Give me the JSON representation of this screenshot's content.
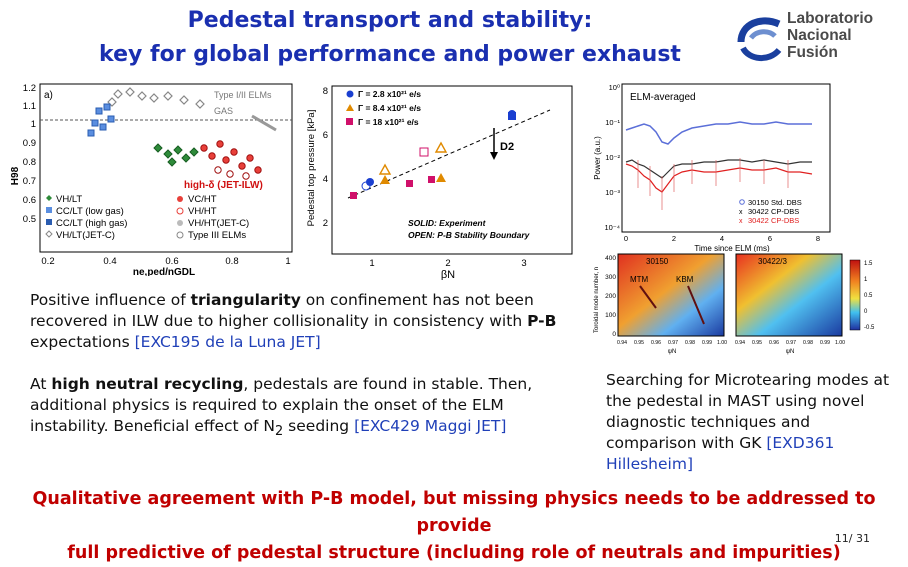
{
  "title": {
    "line1": "Pedestal transport and stability:",
    "line2": "key for global performance and power exhaust"
  },
  "logo": {
    "line1": "Laboratorio",
    "line2": "Nacional",
    "line3": "Fusión"
  },
  "fig1": {
    "panel": "a)",
    "ylabel": "H98",
    "xlabel": "ne,ped/nGDL",
    "yticks": [
      "1.2",
      "1.1",
      "1",
      "0.9",
      "0.8",
      "0.7",
      "0.6",
      "0.5"
    ],
    "xticks": [
      "0.2",
      "0.4",
      "0.6",
      "0.8",
      "1"
    ],
    "ann_type": "Type I/II ELMs",
    "ann_gas": "GAS",
    "ann_highdelta": "high-δ (JET-ILW)",
    "legend_left": [
      "VH/LT",
      "CC/LT (low gas)",
      "CC/LT (high gas)",
      "VH/LT(JET-C)"
    ],
    "legend_right": [
      "VC/HT",
      "VH/HT",
      "VH/HT(JET-C)",
      "Type III ELMs"
    ]
  },
  "fig2": {
    "ylabel": "Pedestal top pressure [kPa]",
    "xlabel": "βN",
    "yticks": [
      "8",
      "6",
      "4",
      "2"
    ],
    "xticks": [
      "1",
      "2",
      "3"
    ],
    "legend": [
      "Γ = 2.8 x10²¹ e/s",
      "Γ = 8.4 x10²¹ e/s",
      "Γ = 18 x10²¹ e/s"
    ],
    "d2": "D2",
    "note1": "SOLID: Experiment",
    "note2": "OPEN: P-B Stability Boundary"
  },
  "fig3": {
    "title": "ELM-averaged",
    "ylabel": "Power (a.u.)",
    "xlabel": "Time since ELM (ms)",
    "yticks": [
      "10⁰",
      "10⁻¹",
      "10⁻²",
      "10⁻³",
      "10⁻⁴"
    ],
    "xticks": [
      "0",
      "2",
      "4",
      "6",
      "8"
    ],
    "legend": [
      "30150 Std. DBS",
      "30422 CP-DBS",
      "30422 CP-DBS"
    ]
  },
  "fig4": {
    "ylabel": "Toroidal mode number, n",
    "left_label": "30150",
    "right_label": "30422/3",
    "mtm": "MTM",
    "kbm": "KBM",
    "xticks": [
      "0.94",
      "0.95",
      "0.96",
      "0.97",
      "0.98",
      "0.99",
      "1.00"
    ],
    "xlabel": "ψN",
    "cbar": [
      "1.5",
      "1",
      "0.5",
      "0",
      "-0.5"
    ],
    "yticks": [
      "400",
      "300",
      "200",
      "100",
      "0"
    ]
  },
  "text1": {
    "a": "Positive influence of ",
    "b": "triangularity",
    "c": " on confinement has not been recovered in ILW  due to higher collisionality in consistency with ",
    "d": "P-B",
    "e": " expectations ",
    "ref": "[EXC195 de la Luna JET]"
  },
  "text2": {
    "a": "At ",
    "b": "high neutral recycling",
    "c": ", pedestals are found in stable. Then, additional physics is required to explain the onset of the ELM instability. Beneficial effect of N",
    "sub": "2",
    "d": " seeding ",
    "ref": "[EXC429 Maggi JET]"
  },
  "text3": {
    "a": "Searching for Microtearing modes at the pedestal in MAST using novel diagnostic techniques and comparison with GK ",
    "ref": "[EXD361 Hillesheim]"
  },
  "conclusion": {
    "line1": "Qualitative agreement with P-B model, but missing physics needs to be addressed to provide",
    "line2": "full predictive of pedestal structure (including role of neutrals and impurities)"
  },
  "page": "11/ 31",
  "colors": {
    "title": "#1a2fb0",
    "conclusion": "#c00000",
    "ref": "#2040b8"
  }
}
